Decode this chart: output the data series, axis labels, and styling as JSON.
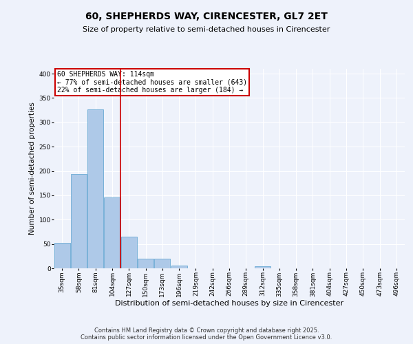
{
  "title": "60, SHEPHERDS WAY, CIRENCESTER, GL7 2ET",
  "subtitle": "Size of property relative to semi-detached houses in Cirencester",
  "xlabel": "Distribution of semi-detached houses by size in Cirencester",
  "ylabel": "Number of semi-detached properties",
  "bar_labels": [
    "35sqm",
    "58sqm",
    "81sqm",
    "104sqm",
    "127sqm",
    "150sqm",
    "173sqm",
    "196sqm",
    "219sqm",
    "242sqm",
    "266sqm",
    "289sqm",
    "312sqm",
    "335sqm",
    "358sqm",
    "381sqm",
    "404sqm",
    "427sqm",
    "450sqm",
    "473sqm",
    "496sqm"
  ],
  "bar_values": [
    52,
    193,
    327,
    146,
    65,
    20,
    20,
    5,
    0,
    0,
    0,
    0,
    4,
    0,
    0,
    0,
    0,
    0,
    0,
    0,
    0
  ],
  "bar_color": "#aec9e8",
  "bar_edge_color": "#6aaad4",
  "property_line_x": 3.5,
  "property_sqm": 114,
  "pct_smaller": 77,
  "count_smaller": 643,
  "pct_larger": 22,
  "count_larger": 184,
  "annotation_box_color": "#cc0000",
  "ylim": [
    0,
    410
  ],
  "yticks": [
    0,
    50,
    100,
    150,
    200,
    250,
    300,
    350,
    400
  ],
  "footer_line1": "Contains HM Land Registry data © Crown copyright and database right 2025.",
  "footer_line2": "Contains public sector information licensed under the Open Government Licence v3.0.",
  "bg_color": "#eef2fb",
  "plot_bg_color": "#eef2fb",
  "grid_color": "#ffffff",
  "title_fontsize": 10,
  "subtitle_fontsize": 8,
  "xlabel_fontsize": 8,
  "ylabel_fontsize": 7.5,
  "tick_fontsize": 6.5,
  "footer_fontsize": 6,
  "ann_fontsize": 7
}
